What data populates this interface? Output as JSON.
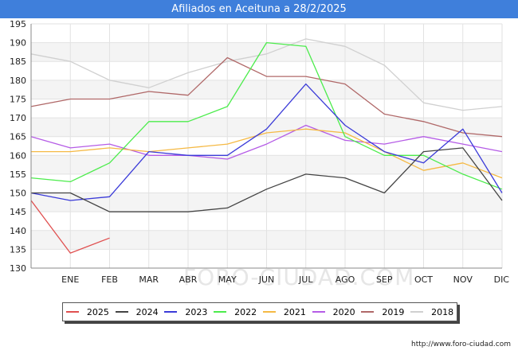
{
  "title": "Afiliados en Aceituna a 28/2/2025",
  "source": "http://www.foro-ciudad.com",
  "watermark": "FORO-CIUDAD.COM",
  "chart_data": {
    "type": "line",
    "title": "Afiliados en Aceituna a 28/2/2025",
    "categories": [
      "",
      "ENE",
      "FEB",
      "MAR",
      "ABR",
      "MAY",
      "JUN",
      "JUL",
      "AGO",
      "SEP",
      "OCT",
      "NOV",
      "DIC"
    ],
    "ylim": [
      130,
      195
    ],
    "yticks": [
      130,
      135,
      140,
      145,
      150,
      155,
      160,
      165,
      170,
      175,
      180,
      185,
      190,
      195
    ],
    "grid": true,
    "legend_position": "bottom",
    "series": [
      {
        "name": "2025",
        "color": "#e05050",
        "values": [
          148,
          134,
          138,
          null,
          null,
          null,
          null,
          null,
          null,
          null,
          null,
          null,
          null
        ]
      },
      {
        "name": "2024",
        "color": "#444444",
        "values": [
          150,
          150,
          145,
          145,
          145,
          146,
          151,
          155,
          154,
          150,
          161,
          162,
          148
        ]
      },
      {
        "name": "2023",
        "color": "#3b3bd8",
        "values": [
          150,
          148,
          149,
          161,
          160,
          160,
          167,
          179,
          168,
          161,
          158,
          167,
          150
        ]
      },
      {
        "name": "2022",
        "color": "#4cec4c",
        "values": [
          154,
          153,
          158,
          169,
          169,
          173,
          190,
          189,
          165,
          160,
          160,
          155,
          151
        ]
      },
      {
        "name": "2021",
        "color": "#f5b944",
        "values": [
          161,
          161,
          162,
          161,
          162,
          163,
          166,
          167,
          166,
          161,
          156,
          158,
          154
        ]
      },
      {
        "name": "2020",
        "color": "#b55ce6",
        "values": [
          165,
          162,
          163,
          160,
          160,
          159,
          163,
          168,
          164,
          163,
          165,
          163,
          161
        ]
      },
      {
        "name": "2019",
        "color": "#b06868",
        "values": [
          173,
          175,
          175,
          177,
          176,
          186,
          181,
          181,
          179,
          171,
          169,
          166,
          165
        ]
      },
      {
        "name": "2018",
        "color": "#d0d0d0",
        "values": [
          187,
          185,
          180,
          178,
          182,
          185,
          187,
          191,
          189,
          184,
          174,
          172,
          173
        ]
      }
    ]
  }
}
